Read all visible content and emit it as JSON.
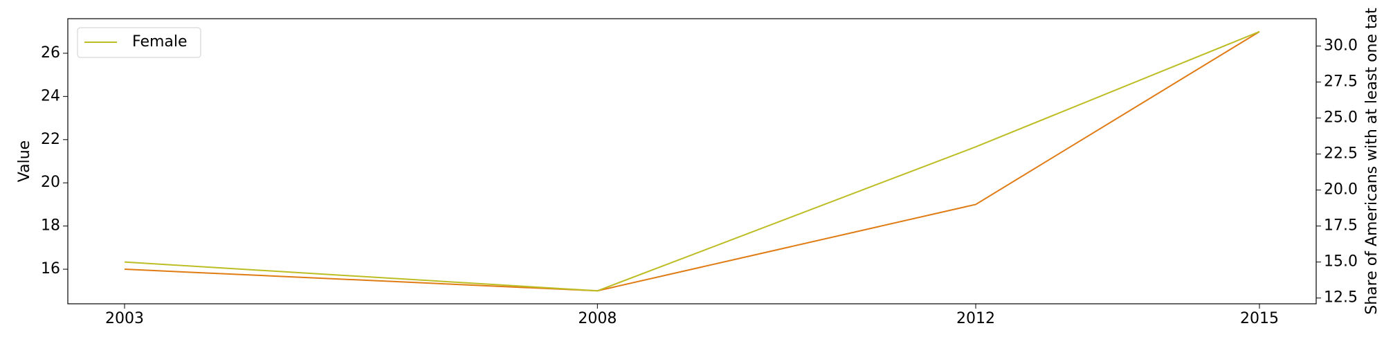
{
  "chart_data": {
    "type": "line",
    "x": [
      2003,
      2008,
      2012,
      2015
    ],
    "xlim": [
      2002.4,
      2015.6
    ],
    "xticks": [
      2003,
      2008,
      2012,
      2015
    ],
    "ylabel": "Value",
    "y2label": "Share of Americans with at least one tat",
    "ylim": [
      14.4,
      27.6
    ],
    "yticks": [
      16,
      18,
      20,
      22,
      24,
      26
    ],
    "y2lim": [
      12.1,
      31.9
    ],
    "y2ticks": [
      12.5,
      {
        "value": 15.0,
        "label": "15.0"
      },
      17.5,
      {
        "value": 20.0,
        "label": "20.0"
      },
      22.5,
      {
        "value": 25.0,
        "label": "25.0"
      },
      27.5,
      {
        "value": 30.0,
        "label": "30.0"
      }
    ],
    "legend": "upper left",
    "series": [
      {
        "color": "#e07b14",
        "values": [
          16,
          15,
          19,
          27
        ]
      },
      {
        "name": "Female",
        "color": "#bcbd22",
        "axis": "y2",
        "values": [
          15,
          13,
          23,
          31
        ]
      }
    ]
  }
}
